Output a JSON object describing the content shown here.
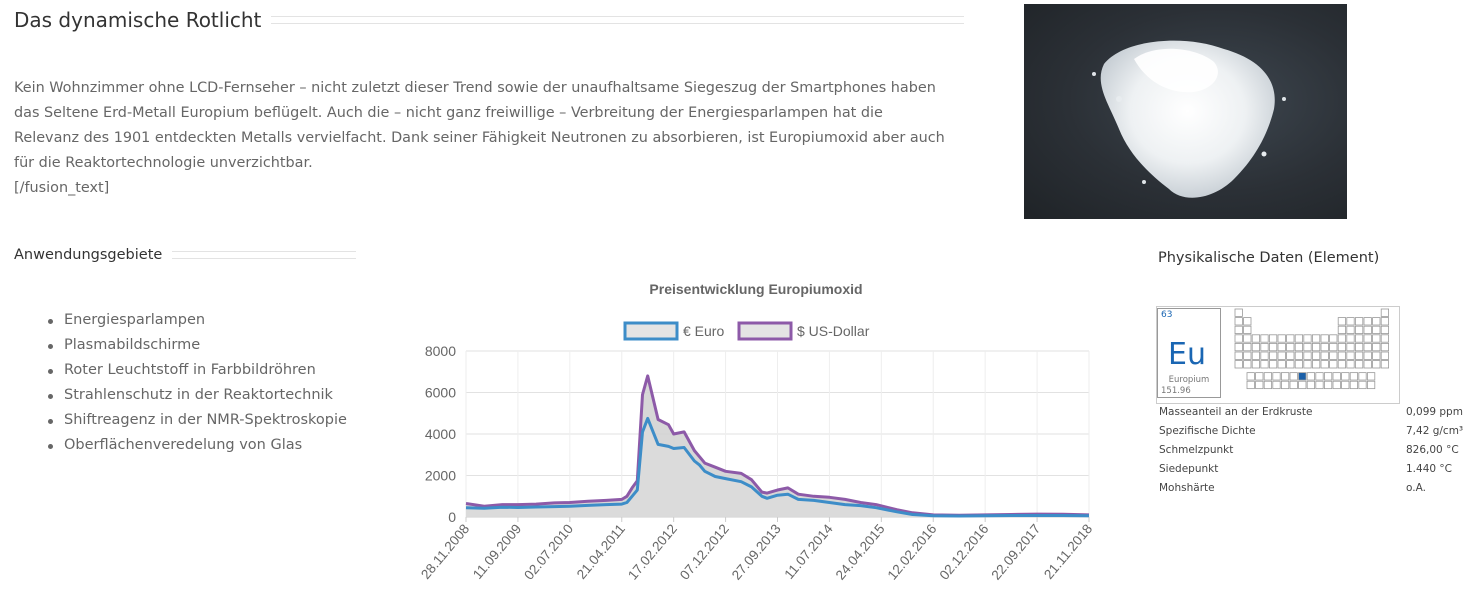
{
  "section": {
    "title": "Das dynamische Rotlicht",
    "paragraph_lines": [
      "Kein Wohnzimmer ohne LCD-Fernseher – nicht zuletzt dieser Trend sowie der unaufhaltsame Siegeszug der Smartphones haben",
      "das Seltene Erd-Metall Europium beflügelt. Auch die – nicht ganz freiwillige – Verbreitung der Energiesparlampen hat die",
      "Relevanz des 1901 entdeckten Metalls vervielfacht. Dank seiner Fähigkeit Neutronen zu absorbieren, ist Europiumoxid aber auch",
      "für die Reaktortechnologie unverzichtbar."
    ],
    "shortcode": "[/fusion_text]"
  },
  "applications": {
    "title": "Anwendungsgebiete",
    "items": [
      "Energiesparlampen",
      "Plasmabildschirme",
      "Roter Leuchtstoff in Farbbildröhren",
      "Strahlenschutz in der Reaktortechnik",
      "Shiftreagenz in der NMR-Spektroskopie",
      "Oberflächenveredelung von Glas"
    ]
  },
  "physical": {
    "title": "Physikalische Daten (Element)",
    "element": {
      "number": "63",
      "symbol": "Eu",
      "name": "Europium",
      "mass": "151.96",
      "highlight_color": "#1a5fa8"
    },
    "properties": [
      {
        "label": "Masseanteil an der Erdkruste",
        "value": "0,099 ppm"
      },
      {
        "label": "Spezifische Dichte",
        "value": "7,42 g/cm³"
      },
      {
        "label": "Schmelzpunkt",
        "value": "826,00 °C"
      },
      {
        "label": "Siedepunkt",
        "value": "1.440 °C"
      },
      {
        "label": "Mohshärte",
        "value": "o.A."
      }
    ]
  },
  "chart_data": {
    "type": "area",
    "title": "Preisentwicklung Europiumoxid",
    "legend_position": "top",
    "ylim": [
      0,
      8000
    ],
    "yticks": [
      0,
      2000,
      4000,
      6000,
      8000
    ],
    "grid": true,
    "tick_labels": [
      "28.11.2008",
      "11.09.2009",
      "02.07.2010",
      "21.04.2011",
      "17.02.2012",
      "07.12.2012",
      "27.09.2013",
      "11.07.2014",
      "24.04.2015",
      "12.02.2016",
      "02.12.2016",
      "22.09.2017",
      "21.11.2018"
    ],
    "x": [
      0,
      0.35,
      0.7,
      1,
      1.35,
      1.7,
      2,
      2.35,
      2.7,
      3,
      3.1,
      3.2,
      3.3,
      3.4,
      3.5,
      3.7,
      3.9,
      4,
      4.2,
      4.4,
      4.5,
      4.6,
      4.8,
      5,
      5.3,
      5.5,
      5.7,
      5.8,
      6,
      6.2,
      6.4,
      6.7,
      7,
      7.3,
      7.6,
      7.9,
      8.3,
      8.6,
      9,
      9.5,
      10,
      10.5,
      11,
      11.5,
      12
    ],
    "series": [
      {
        "name": "€ Euro",
        "color": "#3d8dc8",
        "fill": "#dcdcdc",
        "values": [
          450,
          420,
          470,
          460,
          480,
          500,
          520,
          560,
          600,
          620,
          700,
          1000,
          1300,
          4100,
          4750,
          3500,
          3400,
          3300,
          3350,
          2700,
          2500,
          2200,
          1950,
          1850,
          1700,
          1450,
          1000,
          900,
          1050,
          1100,
          850,
          800,
          700,
          600,
          550,
          450,
          250,
          120,
          60,
          50,
          60,
          70,
          70,
          70,
          60
        ]
      },
      {
        "name": "$ US-Dollar",
        "color": "#8d5aa8",
        "fill": "#d0d0d0",
        "values": [
          650,
          520,
          600,
          600,
          620,
          680,
          700,
          760,
          800,
          850,
          1000,
          1400,
          1750,
          5900,
          6800,
          4700,
          4450,
          4000,
          4100,
          3200,
          2900,
          2600,
          2400,
          2200,
          2100,
          1800,
          1200,
          1150,
          1300,
          1400,
          1100,
          1000,
          950,
          850,
          700,
          600,
          350,
          200,
          100,
          80,
          100,
          120,
          140,
          130,
          100
        ]
      }
    ]
  }
}
